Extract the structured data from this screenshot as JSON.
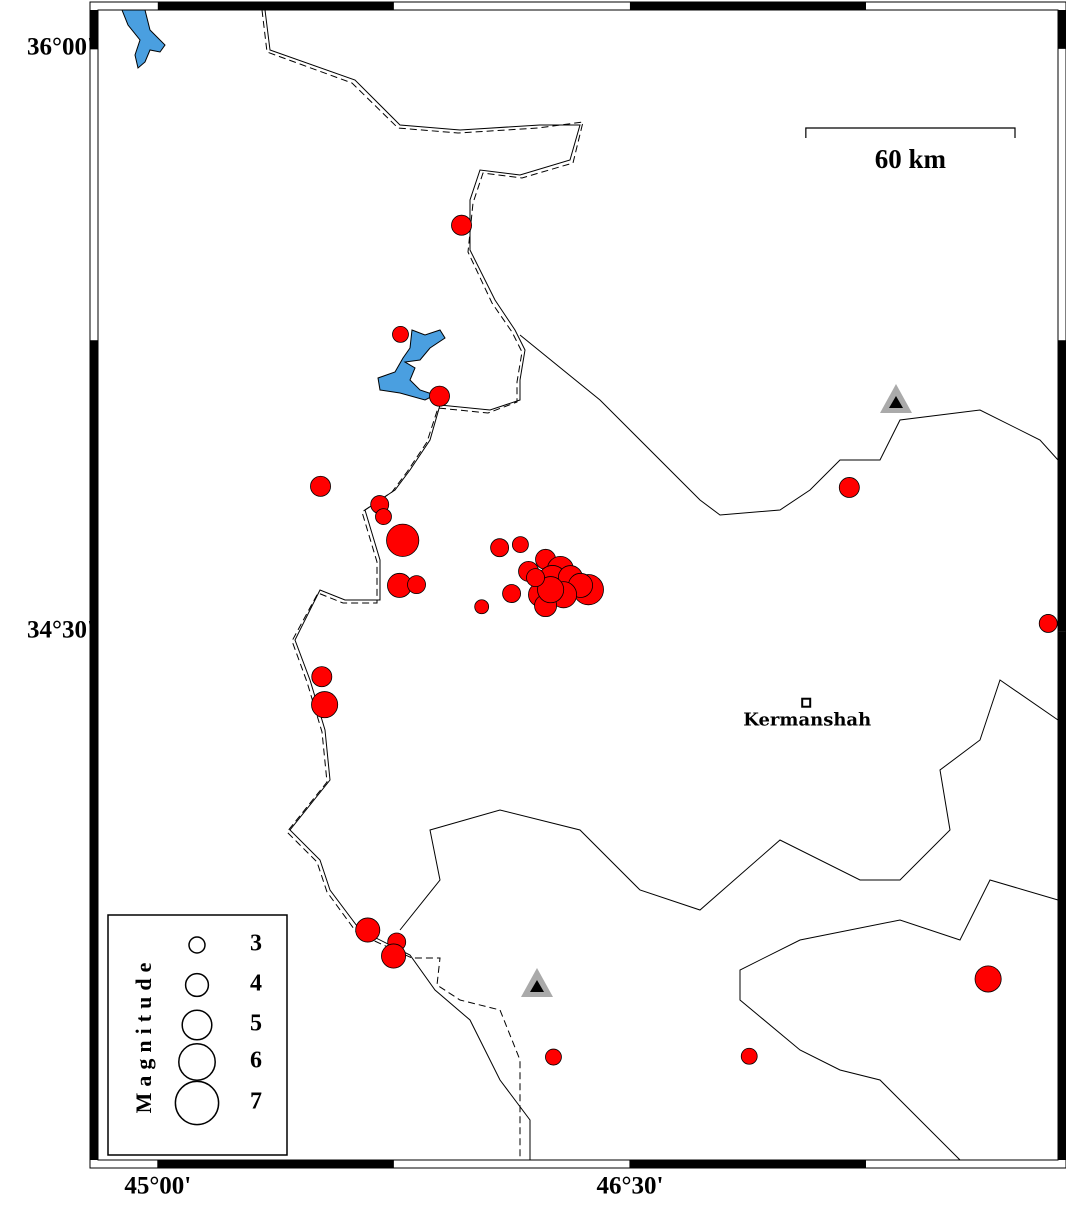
{
  "chart_data": {
    "type": "scatter",
    "xlim": [
      44.81,
      47.86
    ],
    "ylim": [
      33.14,
      36.1
    ],
    "xticks": [
      {
        "value": 45,
        "label": "45°00'"
      },
      {
        "value": 46.5,
        "label": "46°30'"
      }
    ],
    "yticks": [
      {
        "value": 36,
        "label": "36°00'"
      },
      {
        "value": 34.5,
        "label": "34°30'"
      }
    ],
    "series": [
      {
        "color": "#ff0000",
        "x": [
          45.965,
          45.771,
          45.895,
          45.517,
          45.705,
          45.717,
          45.778,
          45.768,
          45.822,
          46.086,
          46.152,
          46.029,
          46.124,
          46.232,
          46.178,
          46.279,
          46.254,
          46.311,
          46.368,
          46.343,
          46.216,
          46.289,
          46.232,
          46.248,
          46.2,
          45.521,
          45.53,
          47.197,
          47.829,
          45.667,
          45.759,
          45.749,
          46.257,
          46.879,
          47.638
        ],
        "y": [
          35.546,
          35.265,
          35.106,
          34.874,
          34.827,
          34.796,
          34.735,
          34.619,
          34.621,
          34.716,
          34.724,
          34.564,
          34.598,
          34.686,
          34.655,
          34.66,
          34.634,
          34.639,
          34.608,
          34.619,
          34.595,
          34.595,
          34.567,
          34.608,
          34.639,
          34.384,
          34.312,
          34.871,
          34.521,
          33.732,
          33.701,
          33.665,
          33.405,
          33.407,
          33.606
        ],
        "magnitude": [
          3.6,
          3,
          3.6,
          3.6,
          3.3,
          3,
          5.4,
          4.2,
          3.3,
          3.3,
          3,
          2.7,
          3.3,
          3.6,
          3.6,
          4.5,
          4.8,
          4.2,
          5.1,
          4.2,
          4.2,
          4.5,
          3.9,
          4.5,
          3.3,
          3.6,
          4.5,
          3.6,
          3.3,
          4.2,
          3.3,
          4.2,
          3,
          3,
          4.5
        ]
      }
    ],
    "legend": {
      "title": "Magnitude",
      "values": [
        3,
        4,
        5,
        6,
        7
      ]
    },
    "scale_bar": {
      "value": 60,
      "label": "60 km"
    },
    "city": {
      "label": "Kermanshah",
      "x": 47.06,
      "y": 34.317
    }
  }
}
